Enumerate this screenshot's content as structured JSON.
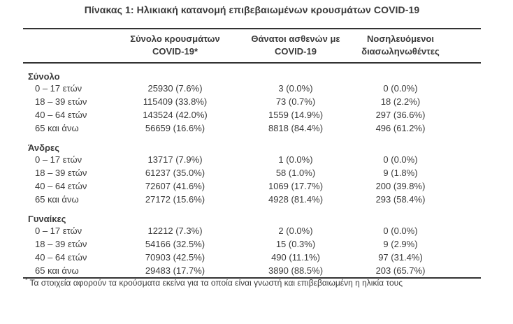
{
  "title": "Πίνακας 1: Ηλικιακή κατανομή επιβεβαιωμένων κρουσμάτων COVID-19",
  "colors": {
    "text": "#3a3a3a",
    "rule": "#333333",
    "background": "#ffffff"
  },
  "table": {
    "col_headers": [
      {
        "line1": "Σύνολο κρουσμάτων",
        "line2": "COVID-19*"
      },
      {
        "line1": "Θάνατοι ασθενών με",
        "line2": "COVID-19"
      },
      {
        "line1": "Νοσηλευόμενοι",
        "line2": "διασωληνωθέντες"
      }
    ],
    "sections": [
      {
        "name": "Σύνολο",
        "rows": [
          {
            "label": "0 – 17 ετών",
            "cases": "25930 (7.6%)",
            "deaths": "3 (0.0%)",
            "intubated": "0 (0.0%)"
          },
          {
            "label": "18 – 39 ετών",
            "cases": "115409 (33.8%)",
            "deaths": "73 (0.7%)",
            "intubated": "18 (2.2%)"
          },
          {
            "label": "40 – 64 ετών",
            "cases": "143524 (42.0%)",
            "deaths": "1559 (14.9%)",
            "intubated": "297 (36.6%)"
          },
          {
            "label": "65 και άνω",
            "cases": "56659 (16.6%)",
            "deaths": "8818 (84.4%)",
            "intubated": "496 (61.2%)"
          }
        ]
      },
      {
        "name": "Άνδρες",
        "rows": [
          {
            "label": "0 – 17 ετών",
            "cases": "13717 (7.9%)",
            "deaths": "1 (0.0%)",
            "intubated": "0 (0.0%)"
          },
          {
            "label": "18 – 39 ετών",
            "cases": "61237 (35.0%)",
            "deaths": "58 (1.0%)",
            "intubated": "9 (1.8%)"
          },
          {
            "label": "40 – 64 ετών",
            "cases": "72607 (41.6%)",
            "deaths": "1069 (17.7%)",
            "intubated": "200 (39.8%)"
          },
          {
            "label": "65 και άνω",
            "cases": "27172 (15.6%)",
            "deaths": "4928 (81.4%)",
            "intubated": "293 (58.4%)"
          }
        ]
      },
      {
        "name": "Γυναίκες",
        "rows": [
          {
            "label": "0 – 17 ετών",
            "cases": "12212 (7.3%)",
            "deaths": "2 (0.0%)",
            "intubated": "0 (0.0%)"
          },
          {
            "label": "18 – 39 ετών",
            "cases": "54166 (32.5%)",
            "deaths": "15 (0.3%)",
            "intubated": "9 (2.9%)"
          },
          {
            "label": "40 – 64 ετών",
            "cases": "70903 (42.5%)",
            "deaths": "490 (11.1%)",
            "intubated": "97 (31.4%)"
          },
          {
            "label": "65 και άνω",
            "cases": "29483 (17.7%)",
            "deaths": "3890 (88.5%)",
            "intubated": "203 (65.7%)"
          }
        ]
      }
    ]
  },
  "footnote": {
    "marker": "*",
    "text": "Τα στοιχεία αφορούν τα κρούσματα εκείνα για τα οποία είναι γνωστή και επιβεβαιωμένη η ηλικία τους"
  }
}
